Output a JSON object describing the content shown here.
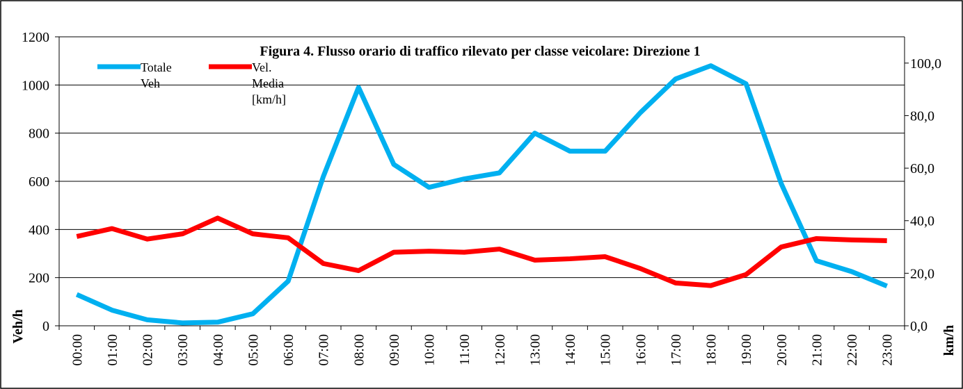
{
  "chart_data": {
    "type": "line",
    "title": "Figura 4. Flusso orario di traffico rilevato per classe veicolare:  Direzione 1",
    "y_label": "Veh/h",
    "y2_label": "km/h",
    "categories": [
      "00:00",
      "01:00",
      "02:00",
      "03:00",
      "04:00",
      "05:00",
      "06:00",
      "07:00",
      "08:00",
      "09:00",
      "10:00",
      "11:00",
      "12:00",
      "13:00",
      "14:00",
      "15:00",
      "16:00",
      "17:00",
      "18:00",
      "19:00",
      "20:00",
      "21:00",
      "22:00",
      "23:00"
    ],
    "series": [
      {
        "name": "Totale Veh",
        "color": "#00b0f0",
        "values": [
          130,
          65,
          25,
          12,
          15,
          50,
          185,
          620,
          990,
          670,
          575,
          610,
          635,
          800,
          725,
          725,
          885,
          1025,
          1080,
          1005,
          590,
          270,
          225,
          165
        ]
      },
      {
        "name": "Vel. Media [km/h]",
        "color": "#ff0000",
        "axis": "y2",
        "values": [
          34,
          37,
          33,
          35,
          41,
          35,
          33.5,
          23.7,
          21,
          28,
          28.4,
          28,
          29.2,
          25,
          25.5,
          26.3,
          21.8,
          16.3,
          15.3,
          19.5,
          30,
          33.2,
          32.7,
          32.4
        ]
      }
    ],
    "ylim": [
      0,
      1200
    ],
    "yticks": [
      0,
      200,
      400,
      600,
      800,
      1000,
      1200
    ],
    "y2lim": [
      0,
      110
    ],
    "y2ticks": [
      {
        "value": 0,
        "label": "0,0"
      },
      {
        "value": 20,
        "label": "20,0"
      },
      {
        "value": 40,
        "label": "40,0"
      },
      {
        "value": 60,
        "label": "60,0"
      },
      {
        "value": 80,
        "label": "80,0"
      },
      {
        "value": 100,
        "label": "100,0"
      }
    ],
    "grid": true
  }
}
